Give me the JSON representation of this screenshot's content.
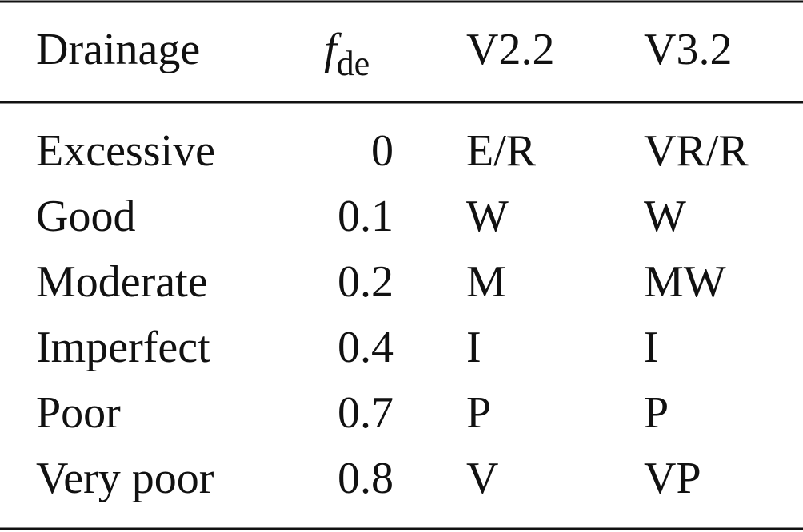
{
  "table": {
    "header": [
      "Drainage",
      {
        "symbol": "f",
        "subscript": "de"
      },
      "V2.2",
      "V3.2"
    ],
    "rows": [
      [
        "Excessive",
        "0",
        "E/R",
        "VR/R"
      ],
      [
        "Good",
        "0.1",
        "W",
        "W"
      ],
      [
        "Moderate",
        "0.2",
        "M",
        "MW"
      ],
      [
        "Imperfect",
        "0.4",
        "I",
        "I"
      ],
      [
        "Poor",
        "0.7",
        "P",
        "P"
      ],
      [
        "Very poor",
        "0.8",
        "V",
        "VP"
      ]
    ]
  }
}
